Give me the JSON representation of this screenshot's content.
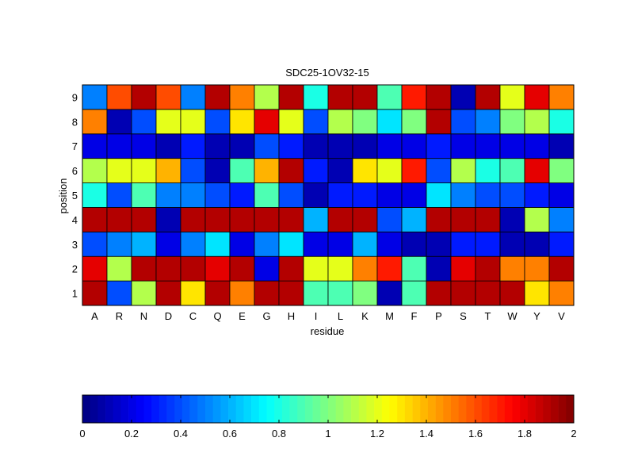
{
  "chart_data": [
    {
      "type": "heatmap",
      "title": "SDC25-1OV32-15",
      "xlabel": "residue",
      "ylabel": "position",
      "x_categories": [
        "A",
        "R",
        "N",
        "D",
        "C",
        "Q",
        "E",
        "G",
        "H",
        "I",
        "L",
        "K",
        "M",
        "F",
        "P",
        "S",
        "T",
        "W",
        "Y",
        "V"
      ],
      "y_categories": [
        "1",
        "2",
        "3",
        "4",
        "5",
        "6",
        "7",
        "8",
        "9"
      ],
      "values": [
        [
          1.9,
          0.4,
          1.1,
          1.9,
          1.3,
          1.9,
          1.5,
          1.9,
          1.9,
          0.9,
          0.9,
          1.0,
          0.1,
          0.9,
          1.9,
          1.9,
          1.9,
          1.9,
          1.3,
          1.5
        ],
        [
          1.8,
          1.1,
          1.9,
          1.9,
          1.9,
          1.8,
          1.9,
          0.2,
          1.9,
          1.2,
          1.2,
          1.5,
          1.7,
          0.9,
          0.1,
          1.8,
          1.9,
          1.5,
          1.5,
          1.9
        ],
        [
          0.4,
          0.5,
          0.6,
          0.2,
          0.5,
          0.7,
          0.2,
          0.5,
          0.7,
          0.2,
          0.2,
          0.6,
          0.2,
          0.1,
          0.1,
          0.3,
          0.3,
          0.1,
          0.1,
          0.3
        ],
        [
          1.9,
          1.9,
          1.9,
          0.1,
          1.9,
          1.9,
          1.9,
          1.9,
          1.9,
          0.6,
          1.9,
          1.9,
          0.4,
          0.6,
          1.9,
          1.9,
          1.9,
          0.1,
          1.1,
          0.5
        ],
        [
          0.8,
          0.4,
          0.9,
          0.5,
          0.5,
          0.4,
          0.3,
          0.9,
          0.4,
          0.1,
          0.3,
          0.3,
          0.2,
          0.2,
          0.7,
          0.5,
          0.4,
          0.4,
          0.3,
          0.2
        ],
        [
          1.1,
          1.2,
          1.2,
          1.4,
          0.4,
          0.1,
          0.9,
          1.4,
          1.9,
          0.3,
          0.1,
          1.3,
          1.2,
          1.7,
          0.4,
          1.1,
          0.8,
          0.9,
          1.8,
          1.0
        ],
        [
          0.2,
          0.2,
          0.2,
          0.1,
          0.3,
          0.1,
          0.1,
          0.4,
          0.3,
          0.1,
          0.1,
          0.1,
          0.2,
          0.2,
          0.3,
          0.2,
          0.2,
          0.2,
          0.2,
          0.1
        ],
        [
          1.5,
          0.1,
          0.4,
          1.2,
          1.2,
          0.4,
          1.3,
          1.8,
          1.2,
          0.4,
          1.1,
          1.0,
          0.7,
          1.0,
          1.9,
          0.4,
          0.5,
          1.0,
          1.1,
          0.8
        ],
        [
          0.5,
          1.6,
          1.9,
          1.6,
          0.5,
          1.9,
          1.5,
          1.1,
          1.9,
          0.8,
          1.9,
          1.9,
          0.9,
          1.7,
          1.9,
          0.1,
          1.9,
          1.2,
          1.8,
          1.5
        ]
      ],
      "zlim": [
        0,
        2
      ],
      "colormap": "jet",
      "grid": true,
      "legend": "colorbar-bottom",
      "colorbar_ticks": [
        "0",
        "0.2",
        "0.4",
        "0.6",
        "0.8",
        "1",
        "1.2",
        "1.4",
        "1.6",
        "1.8",
        "2"
      ],
      "colorbar_levels": 64
    }
  ]
}
